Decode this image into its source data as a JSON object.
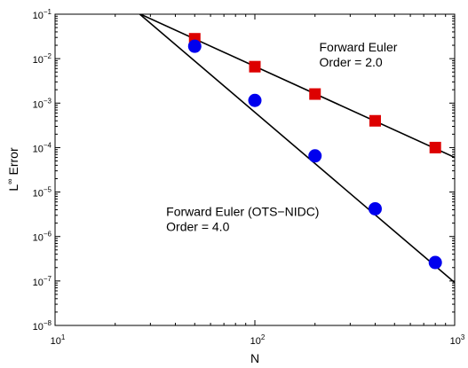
{
  "chart_data": {
    "type": "scatter",
    "scale": "log-log",
    "xlabel": "N",
    "ylabel": "L∞ Error",
    "ylabel_parts": {
      "base": "L",
      "superscript": "∞",
      "rest": " Error"
    },
    "xlim": [
      10,
      1000
    ],
    "ylim": [
      1e-08,
      0.1
    ],
    "x_ticks": [
      {
        "value": 10,
        "base": "10",
        "exp": "1"
      },
      {
        "value": 100,
        "base": "10",
        "exp": "2"
      },
      {
        "value": 1000,
        "base": "10",
        "exp": "3"
      }
    ],
    "y_ticks": [
      {
        "value": 1e-08,
        "base": "10",
        "exp": "−8"
      },
      {
        "value": 1e-07,
        "base": "10",
        "exp": "−7"
      },
      {
        "value": 1e-06,
        "base": "10",
        "exp": "−6"
      },
      {
        "value": 1e-05,
        "base": "10",
        "exp": "−5"
      },
      {
        "value": 0.0001,
        "base": "10",
        "exp": "−4"
      },
      {
        "value": 0.001,
        "base": "10",
        "exp": "−3"
      },
      {
        "value": 0.01,
        "base": "10",
        "exp": "−2"
      },
      {
        "value": 0.1,
        "base": "10",
        "exp": "−1"
      }
    ],
    "grid": false,
    "series": [
      {
        "marker": "square",
        "color": "#dd0000",
        "x": [
          50,
          100,
          200,
          400,
          800
        ],
        "y": [
          0.028,
          0.0066,
          0.0016,
          0.0004,
          0.0001
        ],
        "fit": {
          "x": [
            25,
            1000
          ],
          "y": [
            0.115,
            6e-05
          ]
        }
      },
      {
        "marker": "circle",
        "color": "#0000ee",
        "x": [
          50,
          100,
          200,
          400,
          800
        ],
        "y": [
          0.019,
          0.00115,
          6.5e-05,
          4.2e-06,
          2.6e-07
        ],
        "fit": {
          "x": [
            21,
            1000
          ],
          "y": [
            0.245,
            9.2e-08
          ]
        }
      }
    ],
    "annotations": [
      {
        "lines": [
          "Forward Euler",
          "Order = 2.0"
        ],
        "anchor": [
          210,
          0.0145
        ]
      },
      {
        "lines": [
          "Forward Euler (OTS−NIDC)",
          "Order = 4.0"
        ],
        "anchor": [
          36,
          2.9e-06
        ]
      }
    ]
  }
}
